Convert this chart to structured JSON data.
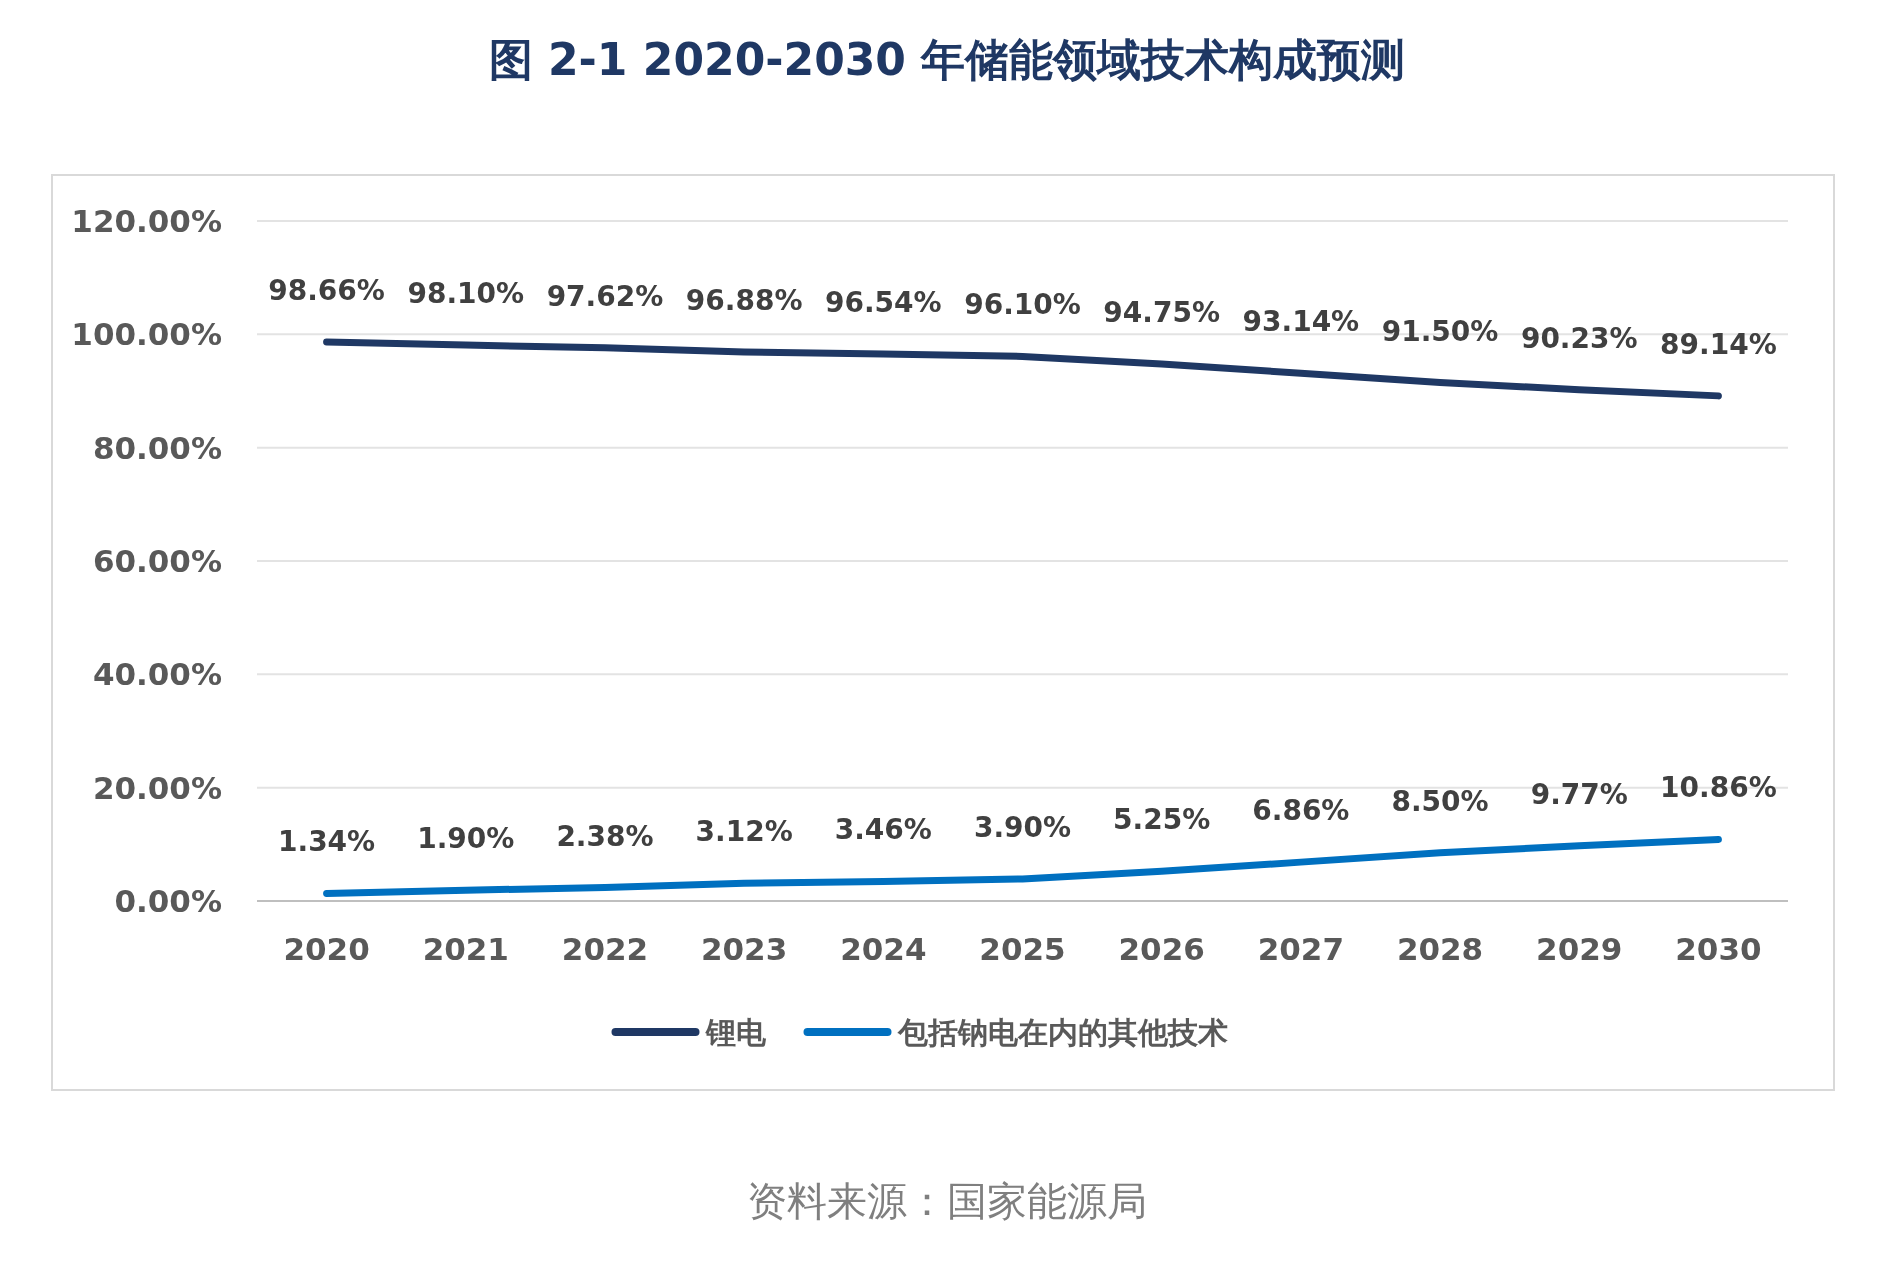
{
  "chart_data": {
    "type": "line",
    "title": "图 2-1 2020-2030 年储能领域技术构成预测",
    "categories": [
      "2020",
      "2021",
      "2022",
      "2023",
      "2024",
      "2025",
      "2026",
      "2027",
      "2028",
      "2029",
      "2030"
    ],
    "series": [
      {
        "name": "锂电",
        "color": "#1f3864",
        "values": [
          98.66,
          98.1,
          97.62,
          96.88,
          96.54,
          96.1,
          94.75,
          93.14,
          91.5,
          90.23,
          89.14
        ],
        "value_labels": [
          "98.66%",
          "98.10%",
          "97.62%",
          "96.88%",
          "96.54%",
          "96.10%",
          "94.75%",
          "93.14%",
          "91.50%",
          "90.23%",
          "89.14%"
        ]
      },
      {
        "name": "包括钠电在内的其他技术",
        "color": "#0070c0",
        "values": [
          1.34,
          1.9,
          2.38,
          3.12,
          3.46,
          3.9,
          5.25,
          6.86,
          8.5,
          9.77,
          10.86
        ],
        "value_labels": [
          "1.34%",
          "1.90%",
          "2.38%",
          "3.12%",
          "3.46%",
          "3.90%",
          "5.25%",
          "6.86%",
          "8.50%",
          "9.77%",
          "10.86%"
        ]
      }
    ],
    "ylim": [
      0,
      120
    ],
    "yticks": [
      {
        "value": 0,
        "label": "0.00%"
      },
      {
        "value": 20,
        "label": "20.00%"
      },
      {
        "value": 40,
        "label": "40.00%"
      },
      {
        "value": 60,
        "label": "60.00%"
      },
      {
        "value": 80,
        "label": "80.00%"
      },
      {
        "value": 100,
        "label": "100.00%"
      },
      {
        "value": 120,
        "label": "120.00%"
      }
    ],
    "grid": "y",
    "legend": "bottom",
    "marker": "none",
    "line_style": "solid",
    "annotations": [
      "资料来源：国家能源局"
    ]
  }
}
